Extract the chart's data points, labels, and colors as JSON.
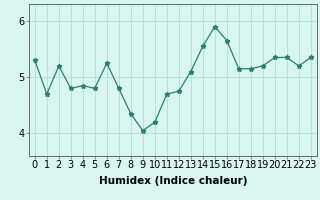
{
  "x": [
    0,
    1,
    2,
    3,
    4,
    5,
    6,
    7,
    8,
    9,
    10,
    11,
    12,
    13,
    14,
    15,
    16,
    17,
    18,
    19,
    20,
    21,
    22,
    23
  ],
  "y": [
    5.3,
    4.7,
    5.2,
    4.8,
    4.85,
    4.8,
    5.25,
    4.8,
    4.35,
    4.05,
    4.2,
    4.7,
    4.75,
    5.1,
    5.55,
    5.9,
    5.65,
    5.15,
    5.15,
    5.2,
    5.35,
    5.35,
    5.2,
    5.35
  ],
  "line_color": "#2a7f6f",
  "marker": "*",
  "marker_size": 3.5,
  "bg_color": "#d8f5f0",
  "grid_color": "#b0ddd8",
  "xlabel": "Humidex (Indice chaleur)",
  "ylim": [
    3.6,
    6.3
  ],
  "yticks": [
    4,
    5,
    6
  ],
  "xlim": [
    -0.5,
    23.5
  ],
  "xlabel_fontsize": 7.5,
  "tick_fontsize": 7
}
